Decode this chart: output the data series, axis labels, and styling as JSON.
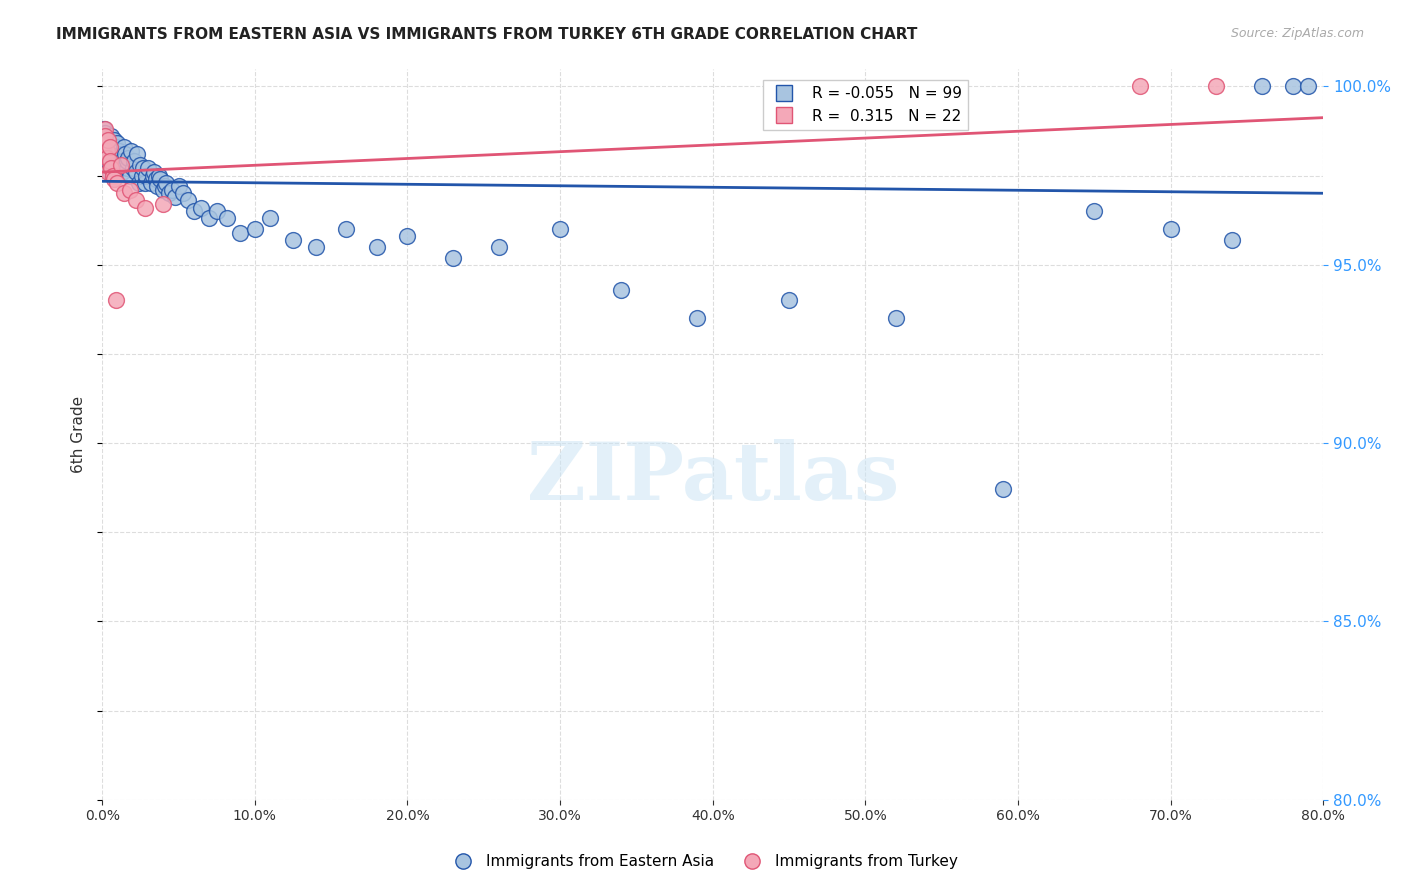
{
  "title": "IMMIGRANTS FROM EASTERN ASIA VS IMMIGRANTS FROM TURKEY 6TH GRADE CORRELATION CHART",
  "source": "Source: ZipAtlas.com",
  "ylabel": "6th Grade",
  "legend_label1": "Immigrants from Eastern Asia",
  "legend_label2": "Immigrants from Turkey",
  "R_blue": -0.055,
  "N_blue": 99,
  "R_pink": 0.315,
  "N_pink": 22,
  "color_blue": "#a8c4e0",
  "color_pink": "#f4a8b8",
  "line_color_blue": "#2255aa",
  "line_color_pink": "#e05575",
  "x_min": 0.0,
  "x_max": 0.8,
  "y_min": 0.8,
  "y_max": 1.005,
  "blue_x": [
    0.001,
    0.001,
    0.002,
    0.002,
    0.002,
    0.003,
    0.003,
    0.003,
    0.004,
    0.004,
    0.004,
    0.004,
    0.005,
    0.005,
    0.005,
    0.005,
    0.006,
    0.006,
    0.006,
    0.007,
    0.007,
    0.007,
    0.007,
    0.008,
    0.008,
    0.008,
    0.009,
    0.009,
    0.01,
    0.01,
    0.01,
    0.011,
    0.011,
    0.012,
    0.012,
    0.013,
    0.013,
    0.014,
    0.015,
    0.015,
    0.016,
    0.016,
    0.017,
    0.018,
    0.019,
    0.02,
    0.021,
    0.022,
    0.023,
    0.024,
    0.025,
    0.026,
    0.027,
    0.028,
    0.029,
    0.03,
    0.032,
    0.033,
    0.034,
    0.035,
    0.036,
    0.037,
    0.038,
    0.04,
    0.041,
    0.042,
    0.044,
    0.046,
    0.048,
    0.05,
    0.053,
    0.056,
    0.06,
    0.065,
    0.07,
    0.075,
    0.082,
    0.09,
    0.1,
    0.11,
    0.125,
    0.14,
    0.16,
    0.18,
    0.2,
    0.23,
    0.26,
    0.3,
    0.34,
    0.39,
    0.45,
    0.52,
    0.59,
    0.65,
    0.7,
    0.74,
    0.76,
    0.78,
    0.79
  ],
  "blue_y": [
    0.988,
    0.984,
    0.986,
    0.982,
    0.987,
    0.983,
    0.981,
    0.985,
    0.984,
    0.98,
    0.979,
    0.985,
    0.984,
    0.982,
    0.98,
    0.976,
    0.986,
    0.978,
    0.983,
    0.984,
    0.982,
    0.979,
    0.976,
    0.985,
    0.98,
    0.977,
    0.983,
    0.976,
    0.982,
    0.977,
    0.984,
    0.978,
    0.982,
    0.979,
    0.981,
    0.976,
    0.979,
    0.983,
    0.978,
    0.981,
    0.977,
    0.979,
    0.98,
    0.975,
    0.982,
    0.977,
    0.979,
    0.976,
    0.981,
    0.973,
    0.978,
    0.975,
    0.977,
    0.973,
    0.975,
    0.977,
    0.973,
    0.975,
    0.976,
    0.974,
    0.972,
    0.975,
    0.974,
    0.971,
    0.972,
    0.973,
    0.97,
    0.971,
    0.969,
    0.972,
    0.97,
    0.968,
    0.965,
    0.966,
    0.963,
    0.965,
    0.963,
    0.959,
    0.96,
    0.963,
    0.957,
    0.955,
    0.96,
    0.955,
    0.958,
    0.952,
    0.955,
    0.96,
    0.943,
    0.935,
    0.94,
    0.935,
    0.887,
    0.965,
    0.96,
    0.957,
    1.0,
    1.0,
    1.0
  ],
  "pink_x": [
    0.001,
    0.002,
    0.002,
    0.003,
    0.003,
    0.004,
    0.004,
    0.005,
    0.005,
    0.006,
    0.007,
    0.008,
    0.009,
    0.01,
    0.012,
    0.014,
    0.018,
    0.022,
    0.028,
    0.04,
    0.68,
    0.73
  ],
  "pink_y": [
    0.984,
    0.988,
    0.986,
    0.982,
    0.98,
    0.985,
    0.976,
    0.983,
    0.979,
    0.977,
    0.975,
    0.974,
    0.94,
    0.973,
    0.978,
    0.97,
    0.971,
    0.968,
    0.966,
    0.967,
    1.0,
    1.0
  ],
  "watermark": "ZIPatlas",
  "background_color": "#ffffff",
  "grid_color": "#dddddd"
}
